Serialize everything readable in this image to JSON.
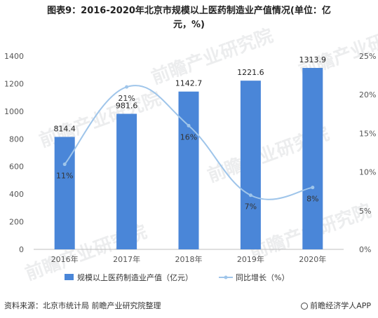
{
  "title_line1": "图表9：2016-2020年北京市规模以上医药制造业产值情况(单位：亿",
  "title_line2": "元，%)",
  "source": "资料来源：北京市统计局 前瞻产业研究院整理",
  "brand": "前瞻经济学人APP",
  "watermark": "前瞻产业研究院",
  "chart_data": {
    "type": "bar+line",
    "categories": [
      "2016年",
      "2017年",
      "2018年",
      "2019年",
      "2020年"
    ],
    "series": [
      {
        "name": "规模以上医药制造业产值（亿元）",
        "type": "bar",
        "axis": "left",
        "color": "#4a86d8",
        "values": [
          814.4,
          981.6,
          1142.7,
          1221.6,
          1313.9
        ],
        "labels": [
          "814.4",
          "981.6",
          "1142.7",
          "1221.6",
          "1313.9"
        ]
      },
      {
        "name": "同比增长（%）",
        "type": "line",
        "axis": "right",
        "color": "#9fc5ea",
        "values": [
          11,
          21,
          16,
          7,
          8
        ],
        "labels": [
          "11%",
          "21%",
          "16%",
          "7%",
          "8%"
        ]
      }
    ],
    "y_left": {
      "min": 0,
      "max": 1400,
      "step": 200,
      "ticks": [
        "0",
        "200",
        "400",
        "600",
        "800",
        "1000",
        "1200",
        "1400"
      ]
    },
    "y_right": {
      "min": 0,
      "max": 25,
      "step": 5,
      "ticks": [
        "0%",
        "5%",
        "10%",
        "15%",
        "20%",
        "25%"
      ]
    },
    "legend_position": "bottom",
    "grid": false
  }
}
